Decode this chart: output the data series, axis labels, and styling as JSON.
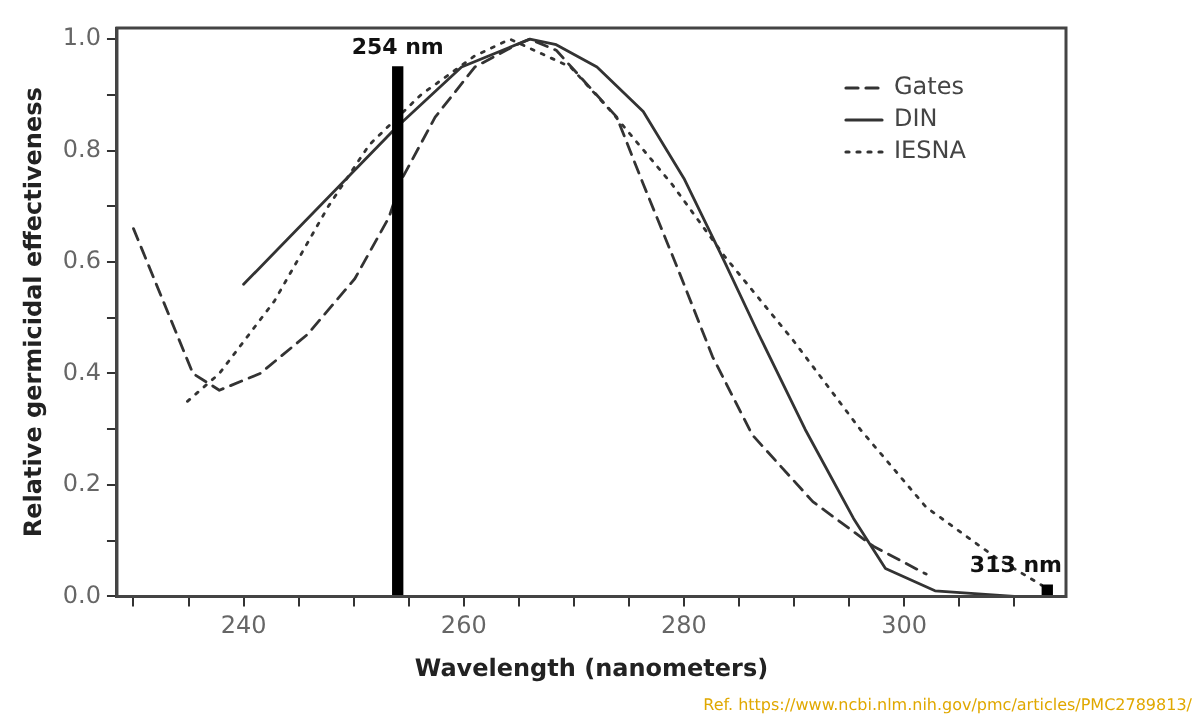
{
  "chart_data": {
    "type": "line",
    "xlabel": "Wavelength (nanometers)",
    "ylabel": "Relative germicidal effectiveness",
    "xlim": [
      228.5,
      314.7
    ],
    "ylim": [
      0,
      1.02
    ],
    "xticks": [
      {
        "value": 230,
        "label": null
      },
      {
        "value": 235,
        "label": null
      },
      {
        "value": 240,
        "label": "240"
      },
      {
        "value": 245,
        "label": null
      },
      {
        "value": 250,
        "label": null
      },
      {
        "value": 255,
        "label": null
      },
      {
        "value": 260,
        "label": "260"
      },
      {
        "value": 265,
        "label": null
      },
      {
        "value": 270,
        "label": null
      },
      {
        "value": 275,
        "label": null
      },
      {
        "value": 280,
        "label": "280"
      },
      {
        "value": 285,
        "label": null
      },
      {
        "value": 290,
        "label": null
      },
      {
        "value": 295,
        "label": null
      },
      {
        "value": 300,
        "label": "300"
      },
      {
        "value": 305,
        "label": null
      },
      {
        "value": 310,
        "label": null
      }
    ],
    "yticks": [
      {
        "value": 0,
        "label": "0.0"
      },
      {
        "value": 0.1,
        "label": null
      },
      {
        "value": 0.2,
        "label": "0.2"
      },
      {
        "value": 0.3,
        "label": null
      },
      {
        "value": 0.4,
        "label": "0.4"
      },
      {
        "value": 0.5,
        "label": null
      },
      {
        "value": 0.6,
        "label": "0.6"
      },
      {
        "value": 0.7,
        "label": null
      },
      {
        "value": 0.8,
        "label": "0.8"
      },
      {
        "value": 0.9,
        "label": null
      },
      {
        "value": 1.0,
        "label": "1.0"
      }
    ],
    "grid": false,
    "legend": "top right",
    "marker": "none",
    "series": [
      {
        "name": "Gates",
        "color": "#333333",
        "line_style": "dashed",
        "x": [
          230,
          235.4,
          237.8,
          241.5,
          245.8,
          250.1,
          253.2,
          254.4,
          257.4,
          261,
          264.8,
          266,
          268.4,
          273.9,
          276.3,
          279.4,
          282.6,
          286.2,
          291.7,
          297.2,
          302
        ],
        "values": [
          0.66,
          0.4,
          0.37,
          0.4,
          0.47,
          0.57,
          0.68,
          0.75,
          0.86,
          0.95,
          0.99,
          1.0,
          0.98,
          0.86,
          0.74,
          0.59,
          0.43,
          0.29,
          0.17,
          0.09,
          0.04
        ]
      },
      {
        "name": "DIN",
        "color": "#333333",
        "line_style": "solid",
        "x": [
          240,
          253.8,
          259.8,
          266,
          268.4,
          272.1,
          276.3,
          280,
          283.7,
          286.8,
          291,
          295.4,
          298.3,
          302.8,
          310
        ],
        "values": [
          0.56,
          0.84,
          0.95,
          1.0,
          0.99,
          0.95,
          0.87,
          0.75,
          0.6,
          0.47,
          0.3,
          0.14,
          0.05,
          0.01,
          0.0
        ]
      },
      {
        "name": "IESNA",
        "color": "#333333",
        "line_style": "dotted",
        "x": [
          234.9,
          237.8,
          242.8,
          247.7,
          251.4,
          256.1,
          261,
          264.2,
          269.7,
          273.4,
          278.9,
          283.7,
          289.9,
          296,
          302,
          308.3,
          312.5
        ],
        "values": [
          0.35,
          0.4,
          0.53,
          0.7,
          0.81,
          0.9,
          0.97,
          1.0,
          0.95,
          0.87,
          0.74,
          0.61,
          0.46,
          0.3,
          0.16,
          0.07,
          0.02
        ]
      },
      {
        "type": "bar",
        "color": "#000000",
        "x": [
          254,
          313
        ],
        "values": [
          0.95,
          0.02
        ]
      }
    ],
    "annotations": [
      {
        "text": "254 nm",
        "x": 254,
        "y": 0.95
      },
      {
        "text": "313 nm",
        "x": 313,
        "y": 0.02
      },
      "Ref. https://www.ncbi.nlm.nih.gov/pmc/articles/PMC2789813/"
    ]
  }
}
